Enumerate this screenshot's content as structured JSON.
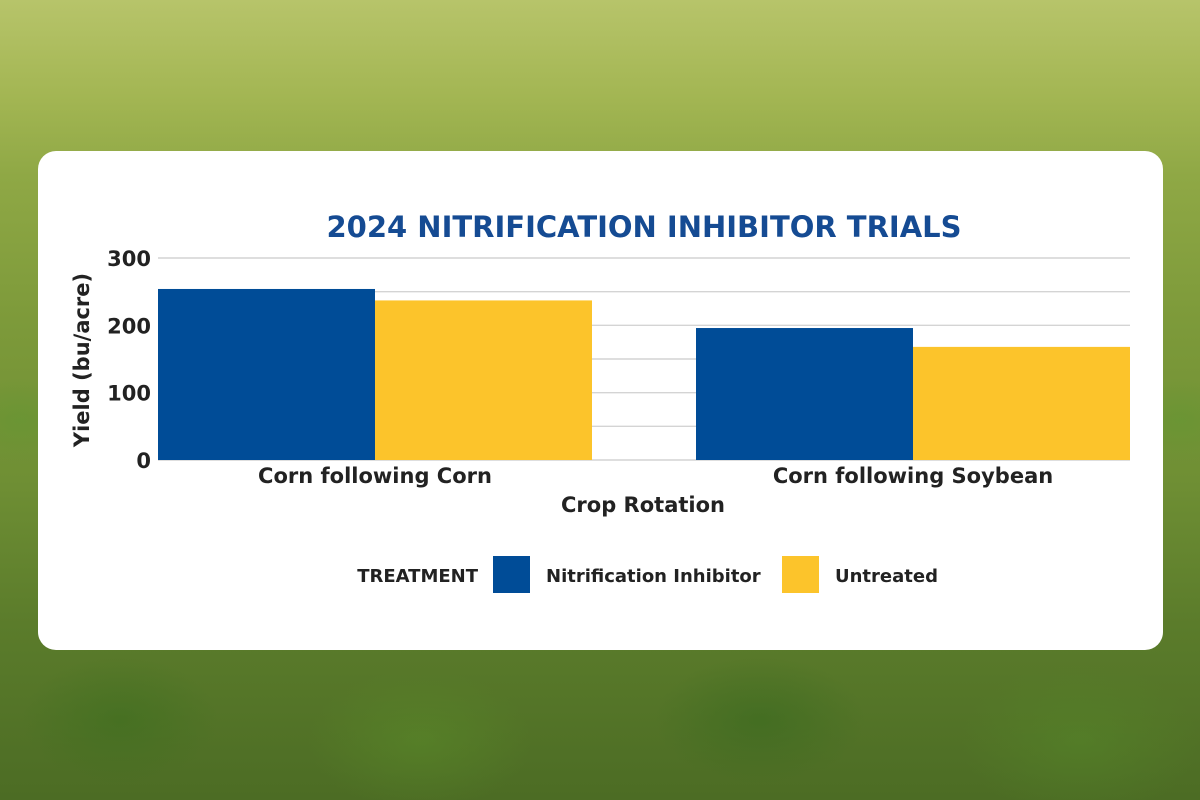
{
  "chart_data": {
    "type": "bar",
    "title": "2024 NITRIFICATION INHIBITOR TRIALS",
    "xlabel": "Crop Rotation",
    "ylabel": "Yield (bu/acre)",
    "categories": [
      "Corn following Corn",
      "Corn following Soybean"
    ],
    "series": [
      {
        "name": "Nitrification Inhibitor",
        "values": [
          254,
          196
        ],
        "color": "#004c97"
      },
      {
        "name": "Untreated",
        "values": [
          237,
          168
        ],
        "color": "#fcc42b"
      }
    ],
    "ylim": [
      0,
      300
    ],
    "yticks": [
      0,
      100,
      200,
      300
    ],
    "ytick_labels": [
      "0",
      "100",
      "200",
      "300"
    ],
    "minor_gridlines": [
      50,
      150,
      250
    ],
    "grid": true,
    "legend": {
      "title": "TREATMENT",
      "placement": "bottom-center"
    }
  }
}
